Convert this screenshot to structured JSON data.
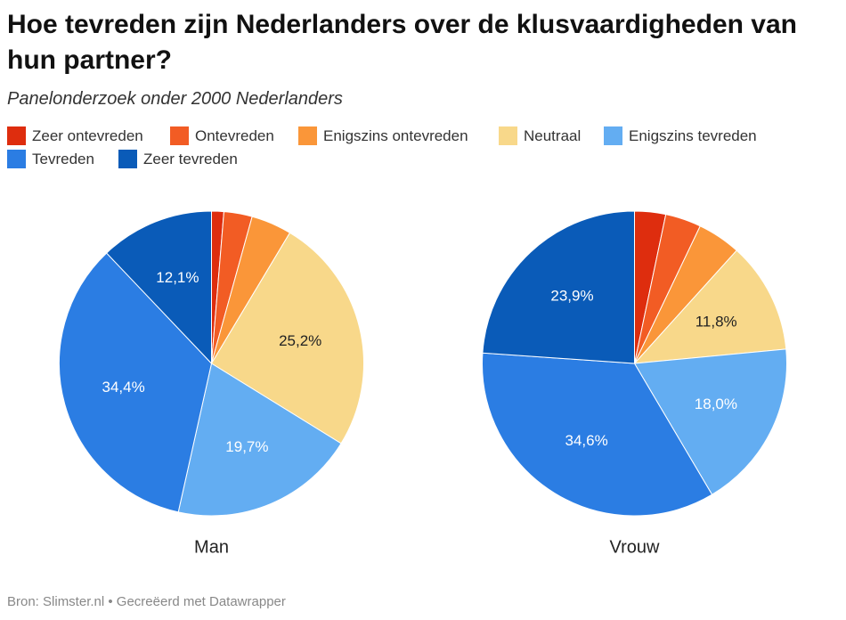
{
  "header": {
    "title": "Hoe tevreden zijn Nederlanders over de klusvaardigheden van hun partner?",
    "subtitle": "Panelonderzoek onder 2000 Nederlanders"
  },
  "footer": {
    "source": "Bron: Slimster.nl • Gecreëerd met Datawrapper"
  },
  "colors": {
    "zeer_ontevreden": "#de2d0e",
    "ontevreden": "#f25c24",
    "enigszins_ontevreden": "#fa9639",
    "neutraal": "#f8d88a",
    "enigszins_tevreden": "#63adf2",
    "tevreden": "#2b7de3",
    "zeer_tevreden": "#0a5bb8"
  },
  "chart_data": {
    "type": "pie",
    "categories": [
      "Zeer ontevreden",
      "Ontevreden",
      "Enigszins ontevreden",
      "Neutraal",
      "Enigszins tevreden",
      "Tevreden",
      "Zeer tevreden"
    ],
    "series": [
      {
        "name": "Man",
        "values": [
          1.3,
          3.0,
          4.3,
          25.2,
          19.7,
          34.4,
          12.1
        ],
        "labels": [
          "",
          "",
          "",
          "25,2%",
          "19,7%",
          "34,4%",
          "12,1%"
        ]
      },
      {
        "name": "Vrouw",
        "values": [
          3.3,
          3.8,
          4.6,
          11.8,
          18.0,
          34.6,
          23.9
        ],
        "labels": [
          "",
          "",
          "",
          "11,8%",
          "18,0%",
          "34,6%",
          "23,9%"
        ]
      }
    ],
    "title": "Hoe tevreden zijn Nederlanders over de klusvaardigheden van hun partner?",
    "legend_position": "top-left"
  }
}
